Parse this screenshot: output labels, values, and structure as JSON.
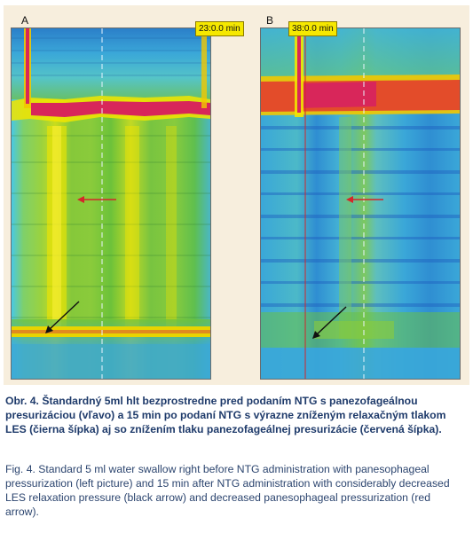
{
  "panels": [
    {
      "letter": "A",
      "time_label": "23:0.0 min"
    },
    {
      "letter": "B",
      "time_label": "38:0.0 min"
    }
  ],
  "colors": {
    "background_low": "#3aa7d8",
    "pressure_mid": "#6cc23a",
    "pressure_high": "#f2e500",
    "pressure_peak": "#d8265a",
    "marker_red": "#d4262a",
    "marker_black": "#111111",
    "caption_text": "#1f3b6b"
  },
  "caption": {
    "slovak": "Obr. 4. Štandardný 5ml hlt bezprostredne pred podaním NTG s panezofageálnou presurizáciou (vľavo) a 15 min po podaní NTG s výrazne zníženým relaxačným tlakom LES (čierna šípka) aj so znížením tlaku panezofageálnej presurizácie (červená šípka).",
    "english": "Fig. 4. Standard 5 ml water swallow right before NTG administration with panesophageal pressurization (left picture) and 15 min after NTG administration with considerably decreased LES relaxation pressure (black arrow) and decreased panesophageal pressurization (red arrow)."
  }
}
